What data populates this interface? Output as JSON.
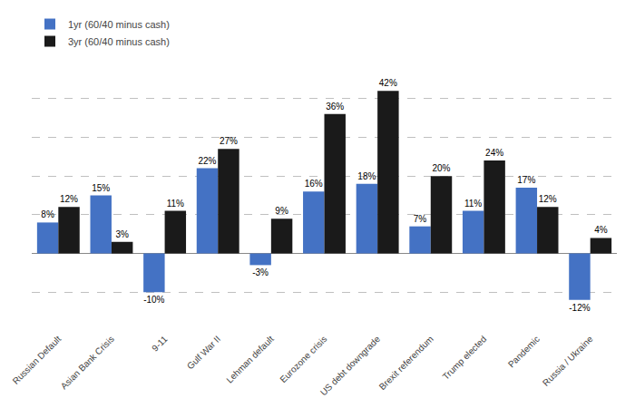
{
  "chart_data": {
    "type": "bar",
    "categories": [
      "Russian Default",
      "Asian Bank Crisis",
      "9-11",
      "Gulf War II",
      "Lehman default",
      "Eurozone crisis",
      "US debt downgrade",
      "Brexit referendum",
      "Trump elected",
      "Pandemic",
      "Russia / Ukraine"
    ],
    "series": [
      {
        "name": "1yr (60/40 minus cash)",
        "color": "#4472c4",
        "values": [
          8,
          15,
          -10,
          22,
          -3,
          16,
          18,
          7,
          11,
          17,
          -12
        ],
        "value_labels": [
          "8%",
          "15%",
          "-10%",
          "22%",
          "-3%",
          "16%",
          "18%",
          "7%",
          "11%",
          "17%",
          "-12%"
        ]
      },
      {
        "name": "3yr (60/40 minus cash)",
        "color": "#1a1a1a",
        "values": [
          12,
          3,
          11,
          27,
          9,
          36,
          42,
          20,
          24,
          12,
          4
        ],
        "value_labels": [
          "12%",
          "3%",
          "11%",
          "27%",
          "9%",
          "36%",
          "42%",
          "20%",
          "24%",
          "12%",
          "4%"
        ]
      }
    ],
    "ylim": [
      -20,
      50
    ],
    "yticks": [
      -20,
      -10,
      0,
      10,
      20,
      30,
      40,
      50
    ],
    "grid": true,
    "legend": "upper left",
    "data_labels": true,
    "tick_labels": "x"
  }
}
